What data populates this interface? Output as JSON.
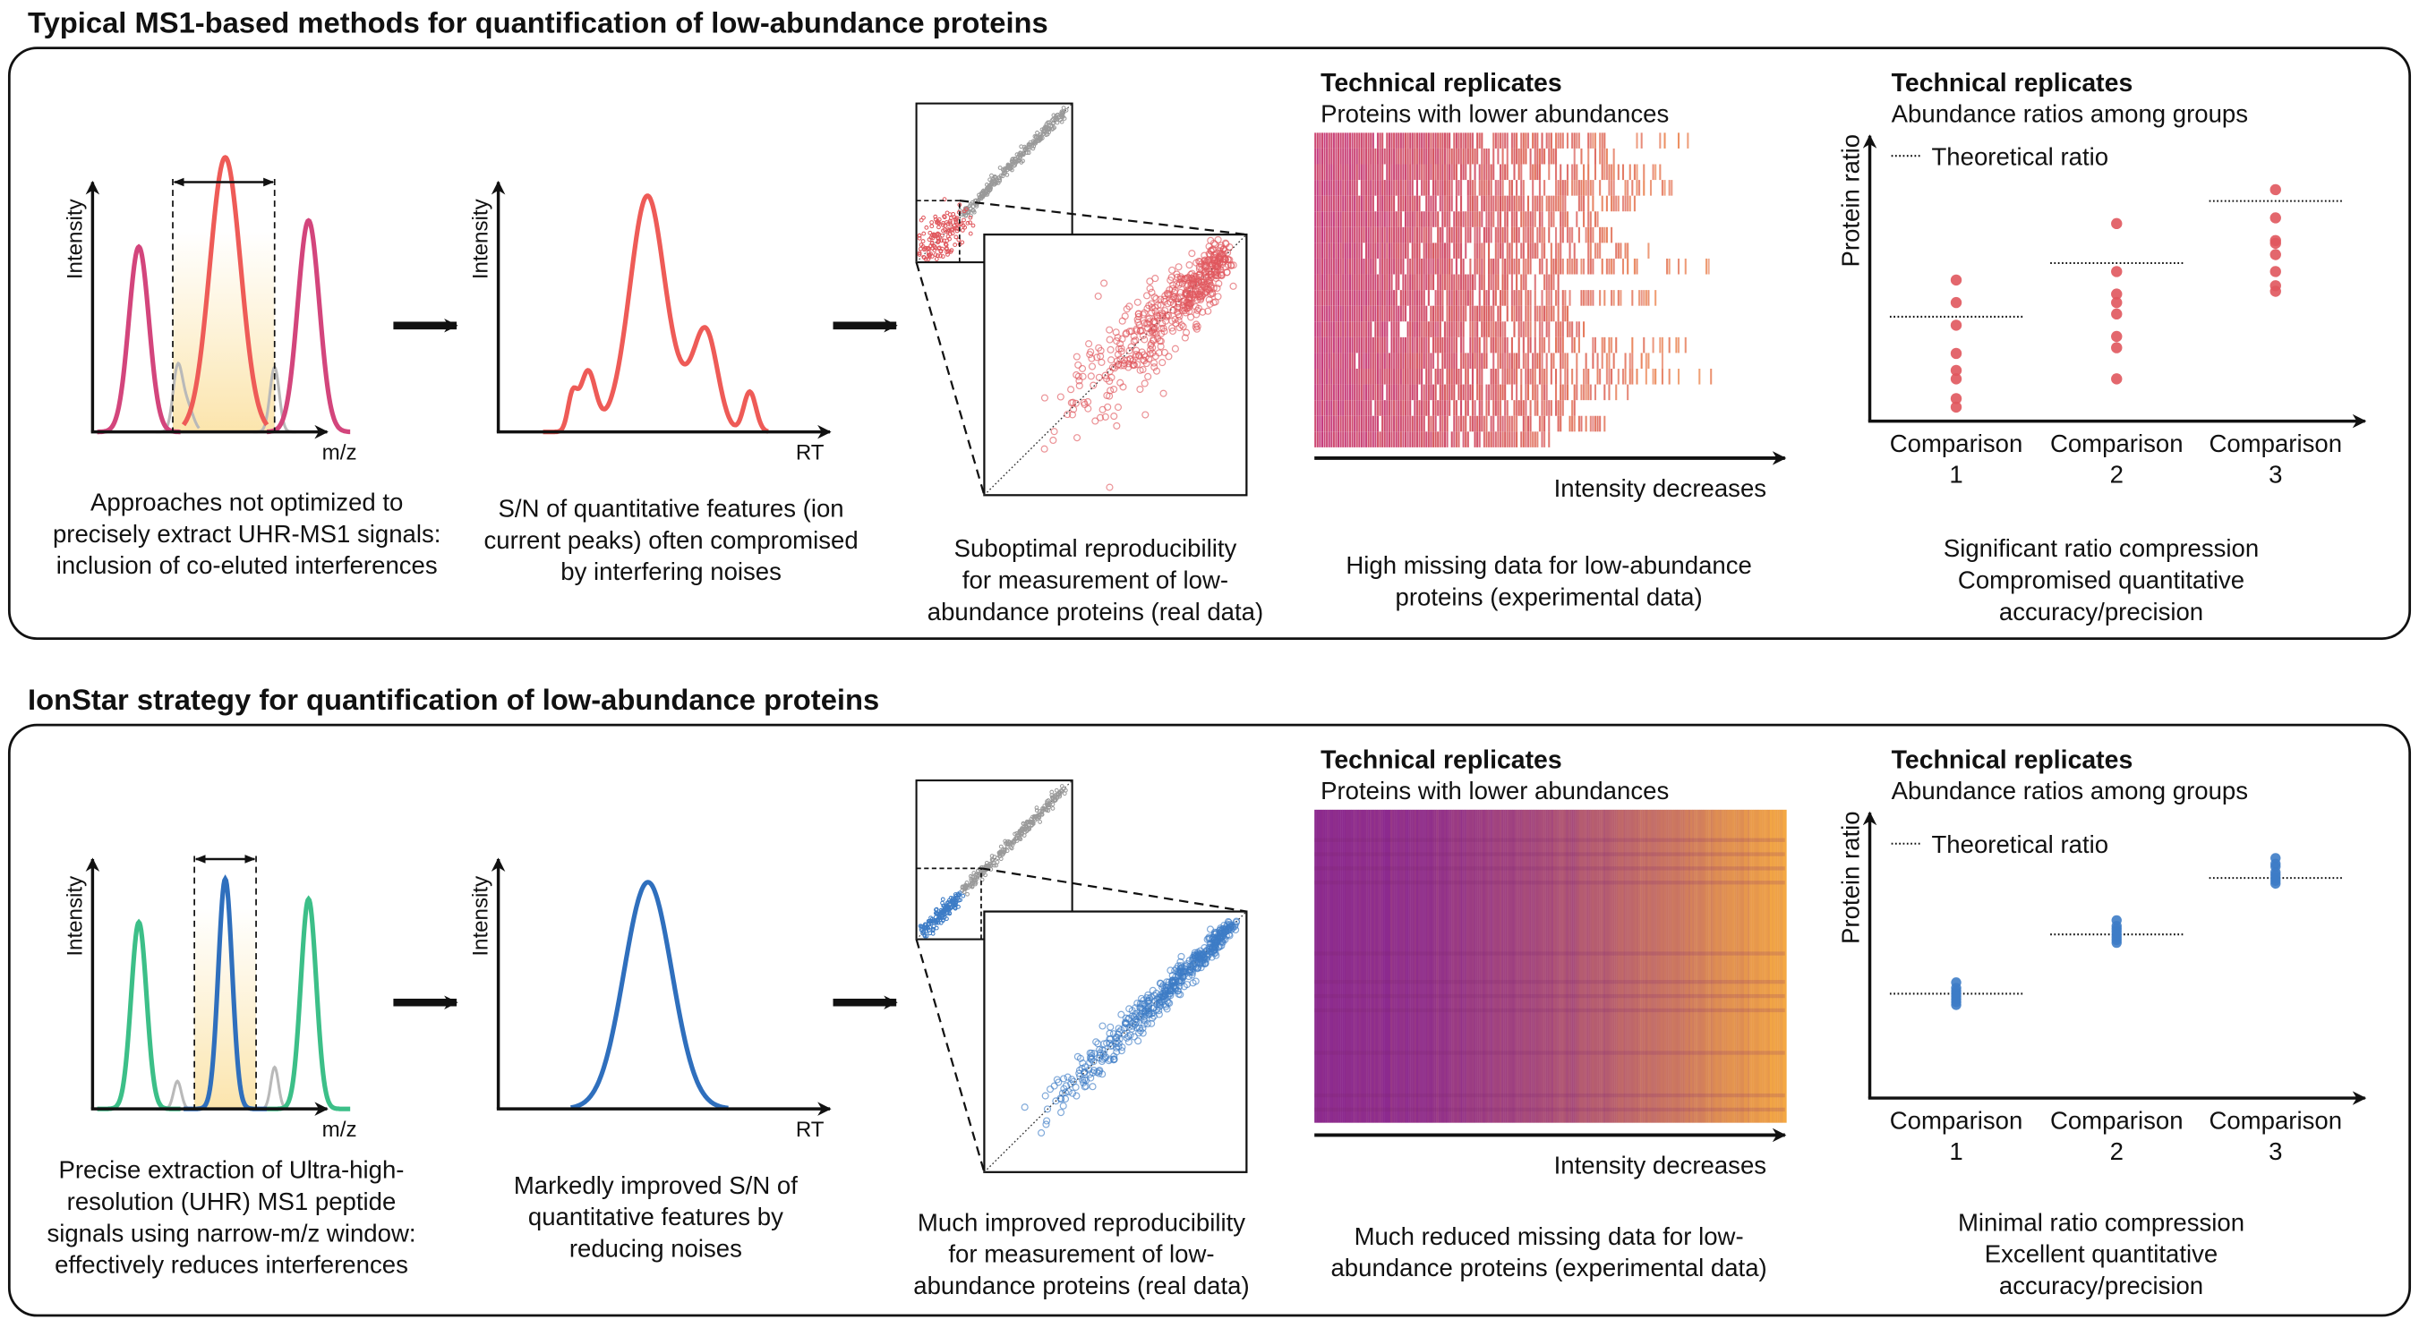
{
  "panels": [
    {
      "title": "Typical MS1-based methods for quantification of low-abundance proteins",
      "spectrum": {
        "y_label": "Intensity",
        "x_label": "m/z",
        "caption": [
          "Approaches not optimized to",
          "precisely extract UHR-MS1 signals:",
          "inclusion of co-eluted interferences"
        ]
      },
      "chromatogram": {
        "y_label": "Intensity",
        "x_label": "RT",
        "caption": [
          "S/N of quantitative features (ion",
          "current peaks) often compromised",
          "by interfering noises"
        ]
      },
      "scatter": {
        "caption": [
          "Suboptimal reproducibility",
          "for measurement of low-",
          "abundance proteins (real data)"
        ]
      },
      "heatmap": {
        "heading": "Technical replicates",
        "subheading": "Proteins with lower abundances",
        "axis_label": "Intensity decreases",
        "missing_data": "high",
        "caption": [
          "High missing data for low-abundance",
          "proteins (experimental data)"
        ]
      },
      "ratio_plot": {
        "heading": "Technical replicates",
        "subheading": "Abundance ratios among groups",
        "legend": "Theoretical ratio",
        "y_label": "Protein ratio",
        "categories": [
          [
            "Comparison",
            "1"
          ],
          [
            "Comparison",
            "2"
          ],
          [
            "Comparison",
            "3"
          ]
        ],
        "theoretical": [
          3.7,
          5.6,
          7.8
        ],
        "points": [
          [
            5.0,
            4.2,
            3.4,
            2.4,
            1.8,
            1.5,
            0.8,
            0.5
          ],
          [
            7.0,
            5.3,
            4.5,
            4.2,
            3.8,
            3.0,
            2.6,
            1.5
          ],
          [
            8.2,
            7.2,
            6.4,
            6.3,
            5.9,
            5.3,
            4.8,
            4.6
          ]
        ],
        "caption": [
          "Significant ratio compression",
          "Compromised quantitative",
          "accuracy/precision"
        ]
      },
      "colors": {
        "side_peak": "#d3457c",
        "target_peak": "#ee5b57",
        "window": "#fbe6b0",
        "points": "#e0575d",
        "heat_start": "#c43a82",
        "heat_end": "#ea7a3c"
      }
    },
    {
      "title": "IonStar strategy for quantification of low-abundance proteins",
      "spectrum": {
        "y_label": "Intensity",
        "x_label": "m/z",
        "caption": [
          "Precise extraction of Ultra-high-",
          "resolution (UHR) MS1 peptide",
          "signals using narrow-m/z window:",
          "effectively reduces interferences"
        ]
      },
      "chromatogram": {
        "y_label": "Intensity",
        "x_label": "RT",
        "caption": [
          "Markedly improved S/N of",
          "quantitative features by",
          "reducing noises"
        ]
      },
      "scatter": {
        "caption": [
          "Much improved reproducibility",
          "for measurement of low-",
          "abundance proteins (real data)"
        ]
      },
      "heatmap": {
        "heading": "Technical replicates",
        "subheading": "Proteins with lower abundances",
        "axis_label": "Intensity decreases",
        "missing_data": "low",
        "caption": [
          "Much reduced missing data for low-",
          "abundance proteins (experimental data)"
        ]
      },
      "ratio_plot": {
        "heading": "Technical replicates",
        "subheading": "Abundance ratios among groups",
        "legend": "Theoretical ratio",
        "y_label": "Protein ratio",
        "categories": [
          [
            "Comparison",
            "1"
          ],
          [
            "Comparison",
            "2"
          ],
          [
            "Comparison",
            "3"
          ]
        ],
        "theoretical": [
          3.7,
          5.8,
          7.8
        ],
        "points": [
          [
            4.1,
            3.9,
            3.8,
            3.7,
            3.6,
            3.5,
            3.4,
            3.3
          ],
          [
            6.3,
            6.1,
            6.0,
            5.9,
            5.8,
            5.7,
            5.6,
            5.5
          ],
          [
            8.5,
            8.3,
            8.2,
            8.0,
            7.9,
            7.8,
            7.7,
            7.6
          ]
        ],
        "caption": [
          "Minimal ratio compression",
          "Excellent quantitative",
          "accuracy/precision"
        ]
      },
      "colors": {
        "side_peak": "#3cbf88",
        "target_peak": "#2f6fbd",
        "window": "#fbe6b0",
        "points": "#3d7cc6",
        "heat_start": "#8c2a8e",
        "heat_end": "#f4a843"
      }
    }
  ]
}
